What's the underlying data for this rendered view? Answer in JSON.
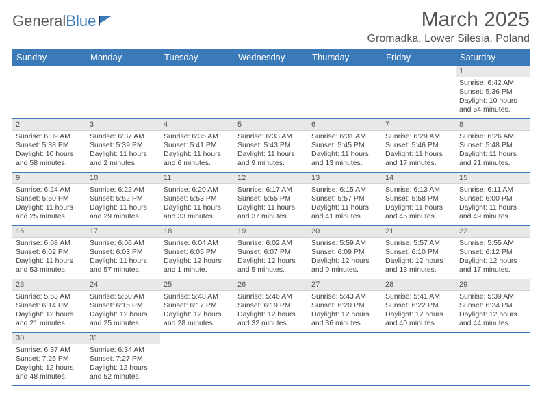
{
  "logo": {
    "part1": "General",
    "part2": "Blue"
  },
  "title": "March 2025",
  "location": "Gromadka, Lower Silesia, Poland",
  "columns": [
    "Sunday",
    "Monday",
    "Tuesday",
    "Wednesday",
    "Thursday",
    "Friday",
    "Saturday"
  ],
  "colors": {
    "header_bg": "#3a7ab8",
    "header_fg": "#ffffff",
    "daynum_bg": "#e8e8e8",
    "border": "#3a7ab8",
    "text": "#444444",
    "logo_gray": "#5a5a5a",
    "logo_blue": "#3a7ab8"
  },
  "weeks": [
    [
      null,
      null,
      null,
      null,
      null,
      null,
      {
        "n": "1",
        "sr": "Sunrise: 6:42 AM",
        "ss": "Sunset: 5:36 PM",
        "dl": "Daylight: 10 hours and 54 minutes."
      }
    ],
    [
      {
        "n": "2",
        "sr": "Sunrise: 6:39 AM",
        "ss": "Sunset: 5:38 PM",
        "dl": "Daylight: 10 hours and 58 minutes."
      },
      {
        "n": "3",
        "sr": "Sunrise: 6:37 AM",
        "ss": "Sunset: 5:39 PM",
        "dl": "Daylight: 11 hours and 2 minutes."
      },
      {
        "n": "4",
        "sr": "Sunrise: 6:35 AM",
        "ss": "Sunset: 5:41 PM",
        "dl": "Daylight: 11 hours and 6 minutes."
      },
      {
        "n": "5",
        "sr": "Sunrise: 6:33 AM",
        "ss": "Sunset: 5:43 PM",
        "dl": "Daylight: 11 hours and 9 minutes."
      },
      {
        "n": "6",
        "sr": "Sunrise: 6:31 AM",
        "ss": "Sunset: 5:45 PM",
        "dl": "Daylight: 11 hours and 13 minutes."
      },
      {
        "n": "7",
        "sr": "Sunrise: 6:29 AM",
        "ss": "Sunset: 5:46 PM",
        "dl": "Daylight: 11 hours and 17 minutes."
      },
      {
        "n": "8",
        "sr": "Sunrise: 6:26 AM",
        "ss": "Sunset: 5:48 PM",
        "dl": "Daylight: 11 hours and 21 minutes."
      }
    ],
    [
      {
        "n": "9",
        "sr": "Sunrise: 6:24 AM",
        "ss": "Sunset: 5:50 PM",
        "dl": "Daylight: 11 hours and 25 minutes."
      },
      {
        "n": "10",
        "sr": "Sunrise: 6:22 AM",
        "ss": "Sunset: 5:52 PM",
        "dl": "Daylight: 11 hours and 29 minutes."
      },
      {
        "n": "11",
        "sr": "Sunrise: 6:20 AM",
        "ss": "Sunset: 5:53 PM",
        "dl": "Daylight: 11 hours and 33 minutes."
      },
      {
        "n": "12",
        "sr": "Sunrise: 6:17 AM",
        "ss": "Sunset: 5:55 PM",
        "dl": "Daylight: 11 hours and 37 minutes."
      },
      {
        "n": "13",
        "sr": "Sunrise: 6:15 AM",
        "ss": "Sunset: 5:57 PM",
        "dl": "Daylight: 11 hours and 41 minutes."
      },
      {
        "n": "14",
        "sr": "Sunrise: 6:13 AM",
        "ss": "Sunset: 5:58 PM",
        "dl": "Daylight: 11 hours and 45 minutes."
      },
      {
        "n": "15",
        "sr": "Sunrise: 6:11 AM",
        "ss": "Sunset: 6:00 PM",
        "dl": "Daylight: 11 hours and 49 minutes."
      }
    ],
    [
      {
        "n": "16",
        "sr": "Sunrise: 6:08 AM",
        "ss": "Sunset: 6:02 PM",
        "dl": "Daylight: 11 hours and 53 minutes."
      },
      {
        "n": "17",
        "sr": "Sunrise: 6:06 AM",
        "ss": "Sunset: 6:03 PM",
        "dl": "Daylight: 11 hours and 57 minutes."
      },
      {
        "n": "18",
        "sr": "Sunrise: 6:04 AM",
        "ss": "Sunset: 6:05 PM",
        "dl": "Daylight: 12 hours and 1 minute."
      },
      {
        "n": "19",
        "sr": "Sunrise: 6:02 AM",
        "ss": "Sunset: 6:07 PM",
        "dl": "Daylight: 12 hours and 5 minutes."
      },
      {
        "n": "20",
        "sr": "Sunrise: 5:59 AM",
        "ss": "Sunset: 6:09 PM",
        "dl": "Daylight: 12 hours and 9 minutes."
      },
      {
        "n": "21",
        "sr": "Sunrise: 5:57 AM",
        "ss": "Sunset: 6:10 PM",
        "dl": "Daylight: 12 hours and 13 minutes."
      },
      {
        "n": "22",
        "sr": "Sunrise: 5:55 AM",
        "ss": "Sunset: 6:12 PM",
        "dl": "Daylight: 12 hours and 17 minutes."
      }
    ],
    [
      {
        "n": "23",
        "sr": "Sunrise: 5:53 AM",
        "ss": "Sunset: 6:14 PM",
        "dl": "Daylight: 12 hours and 21 minutes."
      },
      {
        "n": "24",
        "sr": "Sunrise: 5:50 AM",
        "ss": "Sunset: 6:15 PM",
        "dl": "Daylight: 12 hours and 25 minutes."
      },
      {
        "n": "25",
        "sr": "Sunrise: 5:48 AM",
        "ss": "Sunset: 6:17 PM",
        "dl": "Daylight: 12 hours and 28 minutes."
      },
      {
        "n": "26",
        "sr": "Sunrise: 5:46 AM",
        "ss": "Sunset: 6:19 PM",
        "dl": "Daylight: 12 hours and 32 minutes."
      },
      {
        "n": "27",
        "sr": "Sunrise: 5:43 AM",
        "ss": "Sunset: 6:20 PM",
        "dl": "Daylight: 12 hours and 36 minutes."
      },
      {
        "n": "28",
        "sr": "Sunrise: 5:41 AM",
        "ss": "Sunset: 6:22 PM",
        "dl": "Daylight: 12 hours and 40 minutes."
      },
      {
        "n": "29",
        "sr": "Sunrise: 5:39 AM",
        "ss": "Sunset: 6:24 PM",
        "dl": "Daylight: 12 hours and 44 minutes."
      }
    ],
    [
      {
        "n": "30",
        "sr": "Sunrise: 6:37 AM",
        "ss": "Sunset: 7:25 PM",
        "dl": "Daylight: 12 hours and 48 minutes."
      },
      {
        "n": "31",
        "sr": "Sunrise: 6:34 AM",
        "ss": "Sunset: 7:27 PM",
        "dl": "Daylight: 12 hours and 52 minutes."
      },
      null,
      null,
      null,
      null,
      null
    ]
  ]
}
